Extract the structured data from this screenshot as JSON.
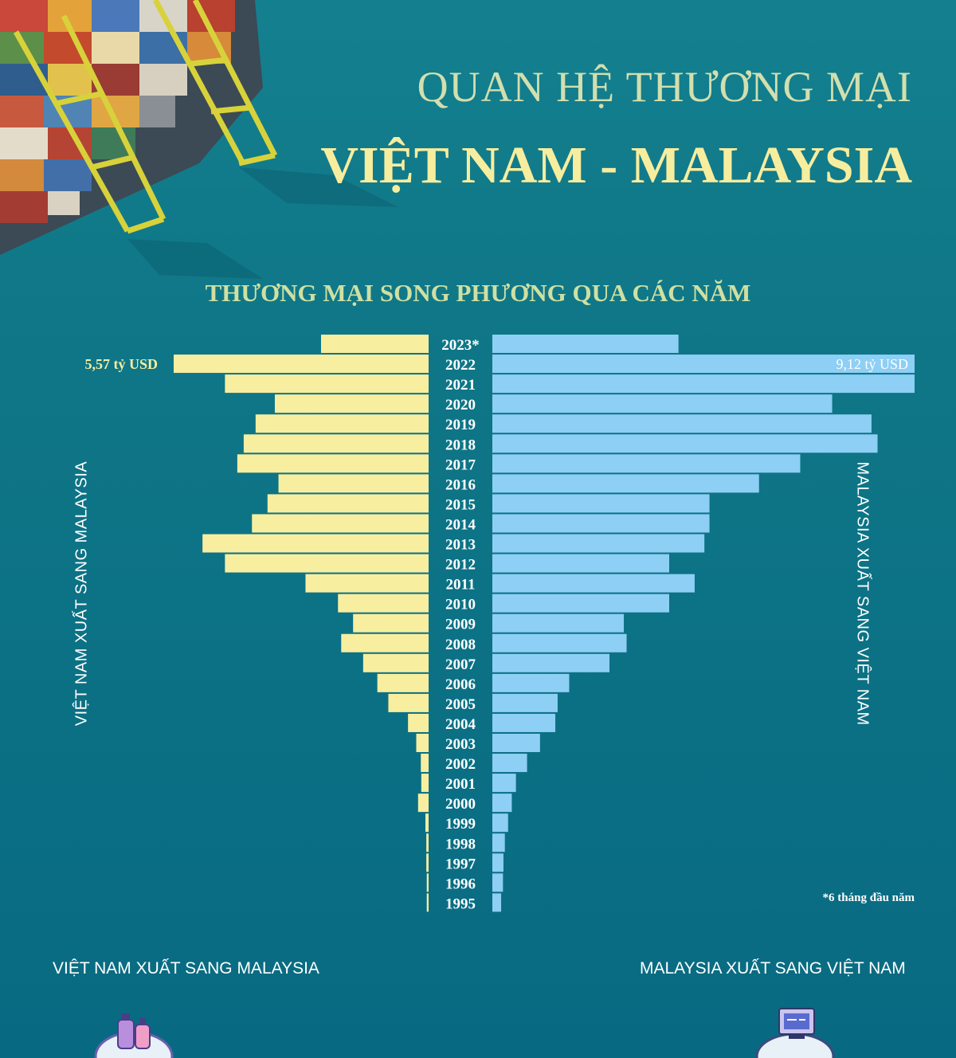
{
  "title": {
    "line1": "QUAN HỆ THƯƠNG MẠI",
    "line2": "VIỆT NAM - MALAYSIA"
  },
  "subtitle": "THƯƠNG MẠI SONG PHƯƠNG QUA CÁC NĂM",
  "footnote": "*6 tháng đầu năm",
  "bottom_labels": {
    "left": "VIỆT NAM XUẤT SANG MALAYSIA",
    "right": "MALAYSIA XUẤT SANG VIỆT NAM"
  },
  "colors": {
    "vietnam": "#f8ee9f",
    "malaysia": "#8ecff5",
    "year_text": "#ffffff",
    "background": "#0c6f86"
  },
  "chart_data": {
    "type": "bar",
    "title": "THƯƠNG MẠI SONG PHƯƠNG QUA CÁC NĂM",
    "unit": "tỷ USD",
    "categories": [
      "2023*",
      "2022",
      "2021",
      "2020",
      "2019",
      "2018",
      "2017",
      "2016",
      "2015",
      "2014",
      "2013",
      "2012",
      "2011",
      "2010",
      "2009",
      "2008",
      "2007",
      "2006",
      "2005",
      "2004",
      "2003",
      "2002",
      "2001",
      "2000",
      "1999",
      "1998",
      "1997",
      "1996",
      "1995"
    ],
    "series": [
      {
        "name": "VIỆT NAM XUẤT SANG MALAYSIA",
        "values": [
          2.35,
          5.57,
          4.45,
          3.36,
          3.78,
          4.04,
          4.18,
          3.28,
          3.52,
          3.86,
          4.94,
          4.45,
          2.69,
          1.98,
          1.65,
          1.91,
          1.43,
          1.12,
          0.88,
          0.45,
          0.27,
          0.17,
          0.16,
          0.23,
          0.07,
          0.05,
          0.05,
          0.04,
          0.04
        ],
        "data_labels": {
          "1": "5,57 tỷ USD"
        }
      },
      {
        "name": "MALAYSIA XUẤT SANG VIỆT NAM",
        "values": [
          4.02,
          9.12,
          9.12,
          7.34,
          8.19,
          8.32,
          6.65,
          5.76,
          4.69,
          4.69,
          4.58,
          3.82,
          4.37,
          3.82,
          2.84,
          2.9,
          2.53,
          1.66,
          1.41,
          1.36,
          1.03,
          0.75,
          0.51,
          0.42,
          0.34,
          0.27,
          0.24,
          0.23,
          0.19
        ],
        "data_labels": {
          "1": "9,12 tỷ USD"
        }
      }
    ]
  }
}
